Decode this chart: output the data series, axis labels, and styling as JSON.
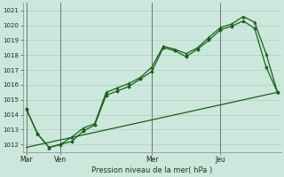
{
  "title": "Pression niveau de la mer( hPa )",
  "background_color": "#cce8dd",
  "grid_color": "#aacfbf",
  "line_color": "#1a5e1a",
  "ylim": [
    1011.5,
    1021.5
  ],
  "yticks": [
    1012,
    1013,
    1014,
    1015,
    1016,
    1017,
    1018,
    1019,
    1020,
    1021
  ],
  "day_labels": [
    "Mar",
    "Ven",
    "Mer",
    "Jeu"
  ],
  "day_positions": [
    0,
    3,
    11,
    17
  ],
  "xlim": [
    -0.3,
    22.3
  ],
  "series1_x": [
    0,
    1,
    2,
    3,
    4,
    5,
    6,
    7,
    8,
    9,
    10,
    11,
    12,
    13,
    14,
    15,
    16,
    17,
    18,
    19,
    20,
    21,
    22
  ],
  "series1_y": [
    1014.4,
    1012.7,
    1011.8,
    1012.0,
    1012.5,
    1013.1,
    1013.4,
    1015.5,
    1015.8,
    1016.1,
    1016.5,
    1017.2,
    1018.6,
    1018.4,
    1018.1,
    1018.5,
    1019.2,
    1019.85,
    1020.1,
    1020.6,
    1020.2,
    1018.1,
    1015.5
  ],
  "series2_x": [
    0,
    1,
    2,
    3,
    4,
    5,
    6,
    7,
    8,
    9,
    10,
    11,
    12,
    13,
    14,
    15,
    16,
    17,
    18,
    19,
    20,
    21,
    22
  ],
  "series2_y": [
    1014.4,
    1012.7,
    1011.8,
    1012.0,
    1012.2,
    1012.9,
    1013.3,
    1015.3,
    1015.6,
    1015.9,
    1016.4,
    1016.9,
    1018.5,
    1018.3,
    1017.9,
    1018.4,
    1019.0,
    1019.7,
    1019.95,
    1020.3,
    1019.8,
    1017.2,
    1015.5
  ],
  "series3_x": [
    0,
    22
  ],
  "series3_y": [
    1011.8,
    1015.5
  ]
}
